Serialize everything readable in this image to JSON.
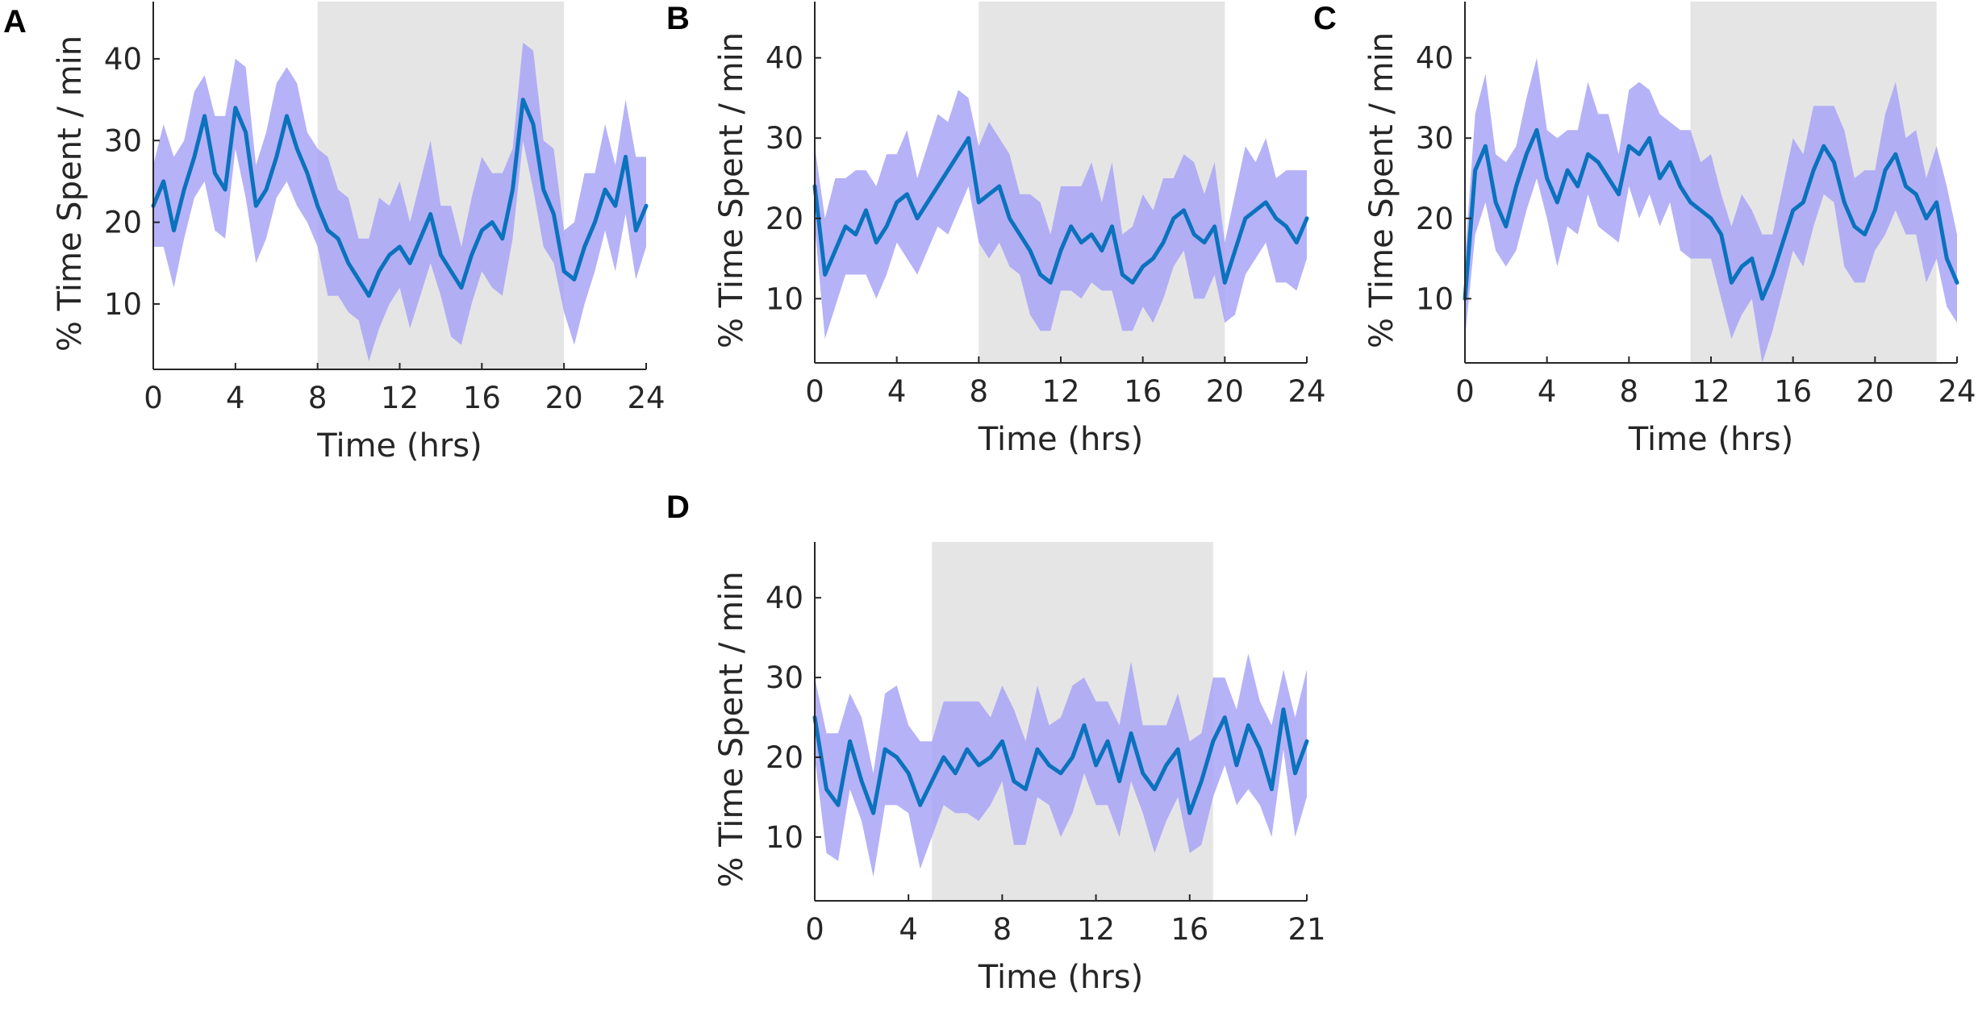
{
  "colors": {
    "line": "#0b72bd",
    "band": "#a9a4f7",
    "dark_shade": "#e5e5e5",
    "axis": "#262626",
    "text": "#262626"
  },
  "chart_data": [
    {
      "panel": "A",
      "type": "line",
      "xlabel": "Time (hrs)",
      "ylabel": "% Time Spent / min",
      "xlim": [
        0,
        24
      ],
      "ylim": [
        2,
        47
      ],
      "xticks": [
        0,
        4,
        8,
        12,
        16,
        20,
        24
      ],
      "yticks": [
        10,
        20,
        30,
        40
      ],
      "shaded_interval": [
        8,
        20
      ],
      "series": [
        {
          "name": "mean",
          "x": [
            0,
            0.5,
            1,
            1.5,
            2,
            2.5,
            3,
            3.5,
            4,
            4.5,
            5,
            5.5,
            6,
            6.5,
            7,
            7.5,
            8,
            8.5,
            9,
            9.5,
            10,
            10.5,
            11,
            11.5,
            12,
            12.5,
            13,
            13.5,
            14,
            14.5,
            15,
            15.5,
            16,
            16.5,
            17,
            17.5,
            18,
            18.5,
            19,
            19.5,
            20,
            20.5,
            21,
            21.5,
            22,
            22.5,
            23,
            23.5,
            24
          ],
          "values": [
            22,
            25,
            19,
            24,
            28,
            33,
            26,
            24,
            34,
            31,
            22,
            24,
            28,
            33,
            29,
            26,
            22,
            19,
            18,
            15,
            13,
            11,
            14,
            16,
            17,
            15,
            18,
            21,
            16,
            14,
            12,
            16,
            19,
            20,
            18,
            24,
            35,
            32,
            24,
            21,
            14,
            13,
            17,
            20,
            24,
            22,
            28,
            19,
            22
          ]
        }
      ]
    },
    {
      "panel": "B",
      "type": "line",
      "xlabel": "Time (hrs)",
      "ylabel": "% Time Spent / min",
      "xlim": [
        0,
        24
      ],
      "ylim": [
        2,
        47
      ],
      "xticks": [
        0,
        4,
        8,
        12,
        16,
        20,
        24
      ],
      "yticks": [
        10,
        20,
        30,
        40
      ],
      "shaded_interval": [
        8,
        20
      ],
      "series": [
        {
          "name": "mean",
          "x": [
            0,
            0.5,
            1,
            1.5,
            2,
            2.5,
            3,
            3.5,
            4,
            4.5,
            5,
            5.5,
            6,
            6.5,
            7,
            7.5,
            8,
            8.5,
            9,
            9.5,
            10,
            10.5,
            11,
            11.5,
            12,
            12.5,
            13,
            13.5,
            14,
            14.5,
            15,
            15.5,
            16,
            16.5,
            17,
            17.5,
            18,
            18.5,
            19,
            19.5,
            20,
            20.5,
            21,
            21.5,
            22,
            22.5,
            23,
            23.5,
            24
          ],
          "values": [
            24,
            13,
            16,
            19,
            18,
            21,
            17,
            19,
            22,
            23,
            20,
            22,
            24,
            26,
            28,
            30,
            22,
            23,
            24,
            20,
            18,
            16,
            13,
            12,
            16,
            19,
            17,
            18,
            16,
            19,
            13,
            12,
            14,
            15,
            17,
            20,
            21,
            18,
            17,
            19,
            12,
            16,
            20,
            21,
            22,
            20,
            19,
            17,
            20
          ]
        }
      ]
    },
    {
      "panel": "C",
      "type": "line",
      "xlabel": "Time (hrs)",
      "ylabel": "% Time Spent / min",
      "xlim": [
        0,
        24
      ],
      "ylim": [
        2,
        47
      ],
      "xticks": [
        0,
        4,
        8,
        12,
        16,
        20,
        24
      ],
      "yticks": [
        10,
        20,
        30,
        40
      ],
      "shaded_interval": [
        11,
        23
      ],
      "series": [
        {
          "name": "mean",
          "x": [
            0,
            0.5,
            1,
            1.5,
            2,
            2.5,
            3,
            3.5,
            4,
            4.5,
            5,
            5.5,
            6,
            6.5,
            7,
            7.5,
            8,
            8.5,
            9,
            9.5,
            10,
            10.5,
            11,
            11.5,
            12,
            12.5,
            13,
            13.5,
            14,
            14.5,
            15,
            15.5,
            16,
            16.5,
            17,
            17.5,
            18,
            18.5,
            19,
            19.5,
            20,
            20.5,
            21,
            21.5,
            22,
            22.5,
            23,
            23.5,
            24
          ],
          "values": [
            10,
            26,
            29,
            22,
            19,
            24,
            28,
            31,
            25,
            22,
            26,
            24,
            28,
            27,
            25,
            23,
            29,
            28,
            30,
            25,
            27,
            24,
            22,
            21,
            20,
            18,
            12,
            14,
            15,
            10,
            13,
            17,
            21,
            22,
            26,
            29,
            27,
            22,
            19,
            18,
            21,
            26,
            28,
            24,
            23,
            20,
            22,
            15,
            12
          ]
        }
      ]
    },
    {
      "panel": "D",
      "type": "line",
      "xlabel": "Time (hrs)",
      "ylabel": "% Time Spent / min",
      "xlim": [
        0,
        21
      ],
      "ylim": [
        2,
        47
      ],
      "xticks": [
        0,
        4,
        8,
        12,
        16,
        21
      ],
      "yticks": [
        10,
        20,
        30,
        40
      ],
      "shaded_interval": [
        5,
        17
      ],
      "series": [
        {
          "name": "mean",
          "x": [
            0,
            0.5,
            1,
            1.5,
            2,
            2.5,
            3,
            3.5,
            4,
            4.5,
            5,
            5.5,
            6,
            6.5,
            7,
            7.5,
            8,
            8.5,
            9,
            9.5,
            10,
            10.5,
            11,
            11.5,
            12,
            12.5,
            13,
            13.5,
            14,
            14.5,
            15,
            15.5,
            16,
            16.5,
            17,
            17.5,
            18,
            18.5,
            19,
            19.5,
            20,
            20.5,
            21
          ],
          "values": [
            25,
            16,
            14,
            22,
            17,
            13,
            21,
            20,
            18,
            14,
            17,
            20,
            18,
            21,
            19,
            20,
            22,
            17,
            16,
            21,
            19,
            18,
            20,
            24,
            19,
            22,
            17,
            23,
            18,
            16,
            19,
            21,
            13,
            17,
            22,
            25,
            19,
            24,
            21,
            16,
            26,
            18,
            22
          ]
        }
      ]
    }
  ]
}
